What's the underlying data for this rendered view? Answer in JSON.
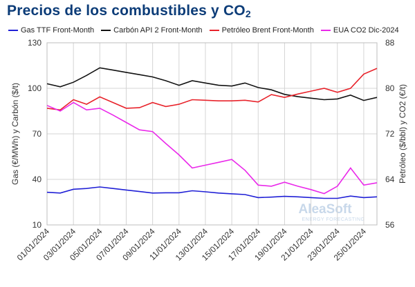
{
  "title": "Precios de los combustibles y CO",
  "title_sub": "2",
  "logo": {
    "name": "AleaSoft",
    "tagline": "ENERGY FORECASTING",
    "color": "#c8d8ea"
  },
  "chart_data": {
    "type": "line",
    "title": "Precios de los combustibles y CO2",
    "x": [
      "01/01/2024",
      "02/01/2024",
      "03/01/2024",
      "04/01/2024",
      "05/01/2024",
      "06/01/2024",
      "07/01/2024",
      "08/01/2024",
      "09/01/2024",
      "10/01/2024",
      "11/01/2024",
      "12/01/2024",
      "13/01/2024",
      "14/01/2024",
      "15/01/2024",
      "16/01/2024",
      "17/01/2024",
      "18/01/2024",
      "19/01/2024",
      "20/01/2024",
      "21/01/2024",
      "22/01/2024",
      "23/01/2024",
      "24/01/2024",
      "25/01/2024",
      "26/01/2024"
    ],
    "xtick_labels": [
      "01/01/2024",
      "03/01/2024",
      "05/01/2024",
      "07/01/2024",
      "09/01/2024",
      "11/01/2024",
      "13/01/2024",
      "15/01/2024",
      "17/01/2024",
      "19/01/2024",
      "21/01/2024",
      "23/01/2024",
      "25/01/2024"
    ],
    "ylabel_left": "Gas (€/MWh) y Carbón ($/t)",
    "ylabel_right": "Petróleo ($/bbl) y CO2 (€/t)",
    "ylim_left": [
      10,
      130
    ],
    "yticks_left": [
      10,
      40,
      70,
      100,
      130
    ],
    "ylim_right": [
      56,
      88
    ],
    "yticks_right": [
      56,
      64,
      72,
      80,
      88
    ],
    "grid": true,
    "legend": "top",
    "series": [
      {
        "name": "Gas TTF Front-Month",
        "axis": "left",
        "color": "#1f1fd6",
        "values": [
          31.5,
          31.0,
          33.5,
          34.0,
          35.0,
          34.0,
          33.0,
          32.0,
          31.0,
          31.2,
          31.2,
          32.5,
          31.8,
          31.0,
          30.5,
          30.0,
          28.0,
          28.3,
          28.8,
          28.5,
          28.0,
          27.5,
          27.5,
          29.0,
          28.0,
          28.5
        ]
      },
      {
        "name": "Carbón API 2 Front-Month",
        "axis": "left",
        "color": "#111111",
        "values": [
          103.0,
          101.0,
          104.0,
          108.5,
          113.5,
          112.0,
          110.5,
          109.0,
          107.5,
          105.0,
          102.0,
          105.0,
          103.5,
          102.0,
          101.5,
          103.5,
          100.5,
          99.0,
          96.0,
          94.5,
          93.5,
          92.5,
          93.0,
          95.5,
          92.0,
          94.0
        ]
      },
      {
        "name": "Petróleo Brent Front-Month",
        "axis": "right",
        "color": "#e8222a",
        "values": [
          76.5,
          76.2,
          78.0,
          77.2,
          78.5,
          77.5,
          76.5,
          76.6,
          77.5,
          76.8,
          77.2,
          78.0,
          77.9,
          77.8,
          77.8,
          77.9,
          77.6,
          78.9,
          78.4,
          79.0,
          79.5,
          80.0,
          79.3,
          80.0,
          82.5,
          83.5
        ]
      },
      {
        "name": "EUA CO2 Dic-2024",
        "axis": "right",
        "color": "#ea28ea",
        "values": [
          77.0,
          76.0,
          77.5,
          76.2,
          76.5,
          75.3,
          74.0,
          72.7,
          72.4,
          70.3,
          68.3,
          66.0,
          66.5,
          67.0,
          67.5,
          65.6,
          63.0,
          62.8,
          63.5,
          62.8,
          62.2,
          61.5,
          62.8,
          66.0,
          63.0,
          63.4
        ]
      }
    ]
  }
}
